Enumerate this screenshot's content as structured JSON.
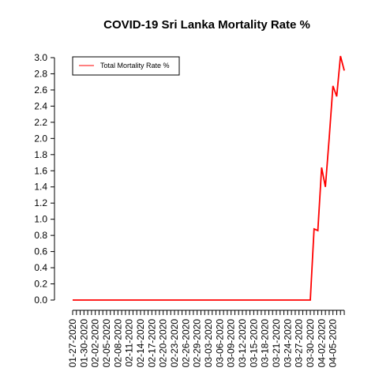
{
  "chart_data": {
    "type": "line",
    "title": "COVID-19 Sri Lanka Mortality Rate %",
    "xlabel": "",
    "ylabel": "",
    "ylim": [
      0,
      3.0
    ],
    "yticks": [
      "0.0",
      "0.2",
      "0.4",
      "0.6",
      "0.8",
      "1.0",
      "1.2",
      "1.4",
      "1.6",
      "1.8",
      "2.0",
      "2.2",
      "2.4",
      "2.6",
      "2.8",
      "3.0"
    ],
    "x_tick_labels": [
      "01-27-2020",
      "01-30-2020",
      "02-02-2020",
      "02-05-2020",
      "02-08-2020",
      "02-11-2020",
      "02-14-2020",
      "02-17-2020",
      "02-20-2020",
      "02-23-2020",
      "02-26-2020",
      "02-29-2020",
      "03-03-2020",
      "03-06-2020",
      "03-09-2020",
      "03-12-2020",
      "03-15-2020",
      "03-18-2020",
      "03-21-2020",
      "03-24-2020",
      "03-27-2020",
      "03-30-2020",
      "04-02-2020",
      "04-05-2020"
    ],
    "legend": {
      "position": "top-left",
      "entries": [
        "Total Mortality Rate %"
      ]
    },
    "series": [
      {
        "name": "Total Mortality Rate %",
        "color": "#ff0000",
        "start_date": "01-27-2020",
        "values": [
          0,
          0,
          0,
          0,
          0,
          0,
          0,
          0,
          0,
          0,
          0,
          0,
          0,
          0,
          0,
          0,
          0,
          0,
          0,
          0,
          0,
          0,
          0,
          0,
          0,
          0,
          0,
          0,
          0,
          0,
          0,
          0,
          0,
          0,
          0,
          0,
          0,
          0,
          0,
          0,
          0,
          0,
          0,
          0,
          0,
          0,
          0,
          0,
          0,
          0,
          0,
          0,
          0,
          0,
          0,
          0,
          0,
          0,
          0,
          0,
          0,
          0,
          0,
          0,
          0.88,
          0.86,
          1.64,
          1.4,
          2.0,
          2.65,
          2.52,
          3.02,
          2.84
        ]
      }
    ]
  }
}
